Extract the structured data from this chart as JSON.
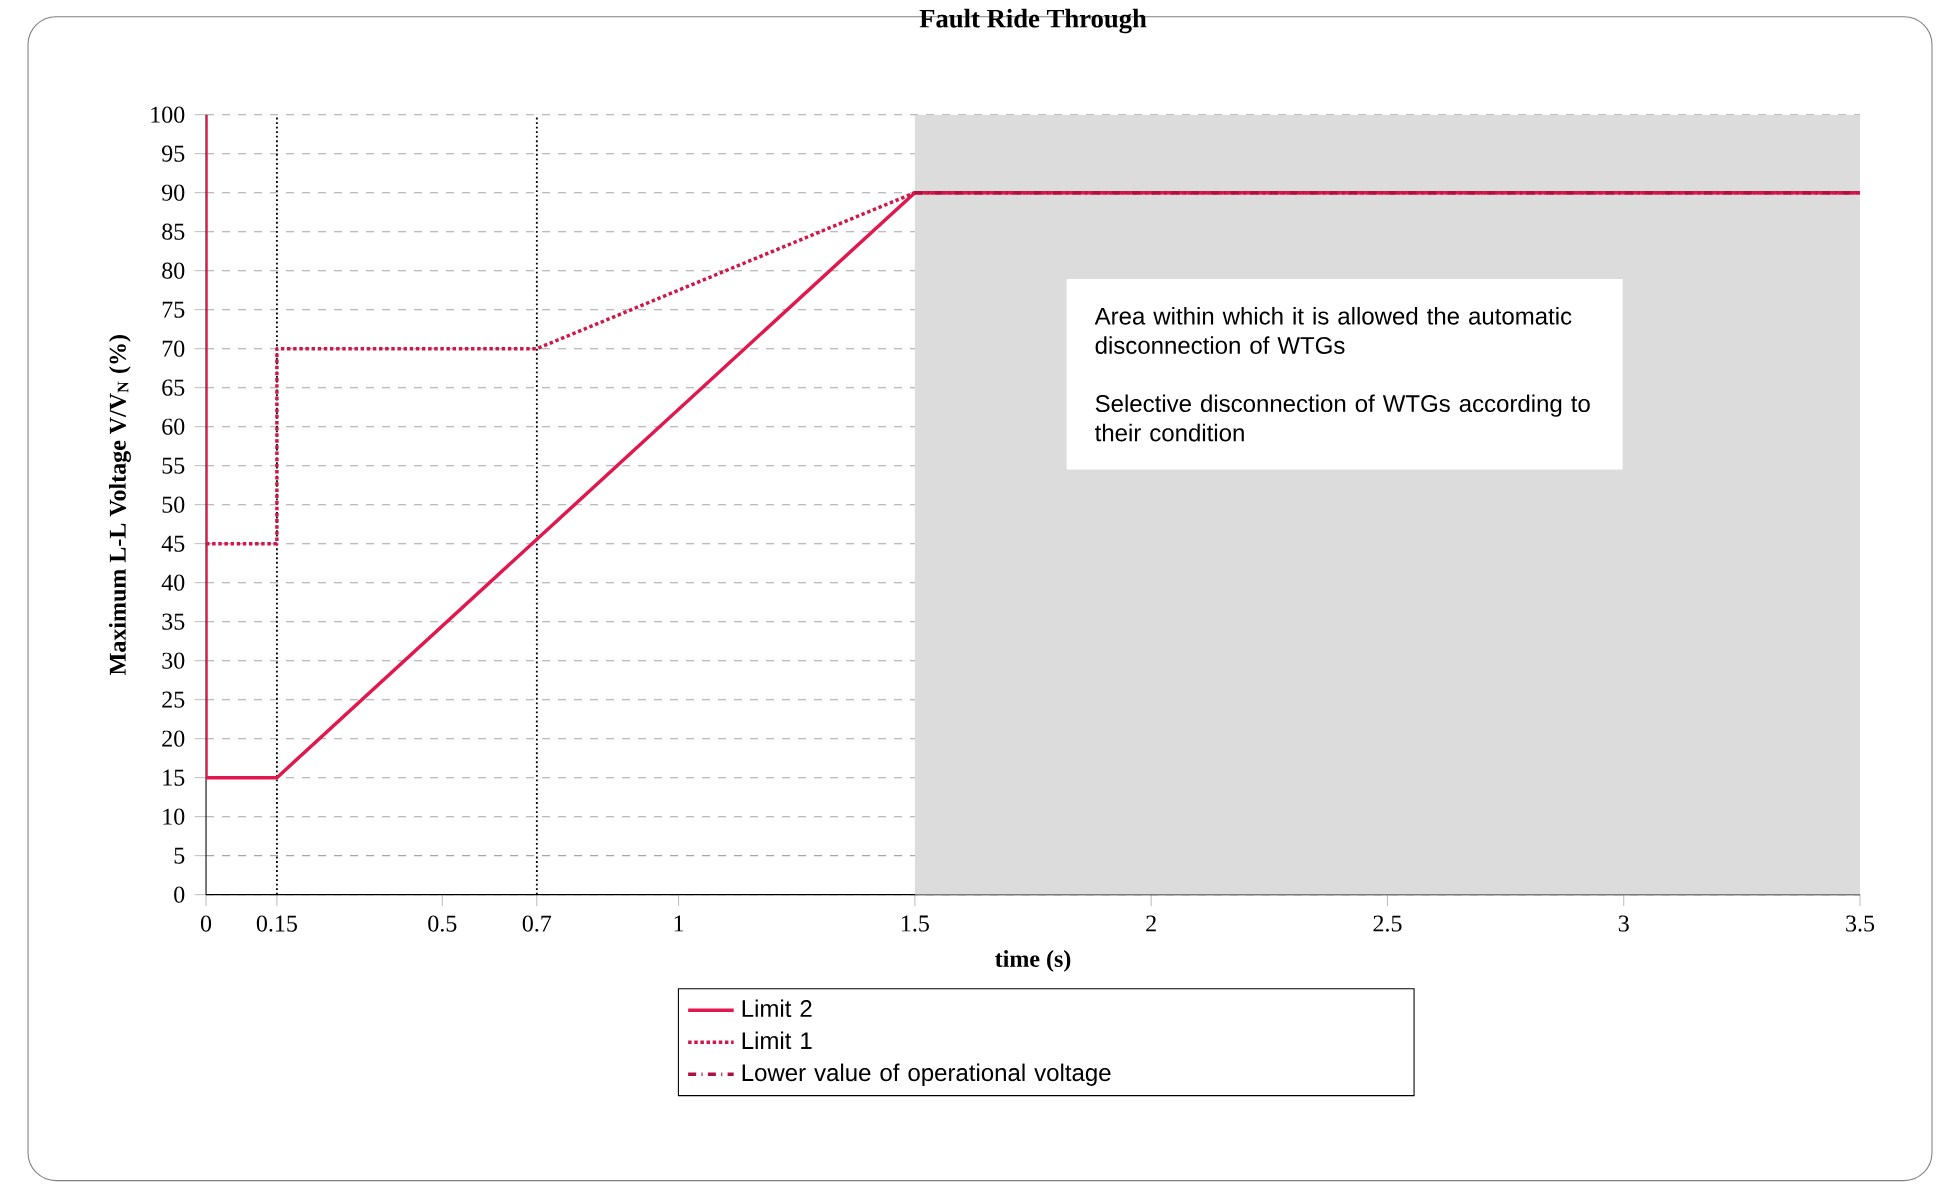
{
  "chart_data": {
    "type": "line",
    "title": "Fault Ride Through",
    "xlabel": "time (s)",
    "ylabel": "Maximum L-L Voltage V/V$_{N}$ (%)",
    "xlim": [
      0,
      3.5
    ],
    "ylim": [
      0,
      100
    ],
    "xticks": [
      0,
      0.15,
      0.5,
      0.7,
      1,
      1.5,
      2,
      2.5,
      3,
      3.5
    ],
    "yticks": [
      0,
      5,
      10,
      15,
      20,
      25,
      30,
      35,
      40,
      45,
      50,
      55,
      60,
      65,
      70,
      75,
      80,
      85,
      90,
      95,
      100
    ],
    "grid": "y",
    "legend": "bottom",
    "marker": "none",
    "series": [
      {
        "name": "Limit 2",
        "color": "#e0184e",
        "line_style": "solid",
        "x": [
          0,
          0,
          0.15,
          1.5,
          3.5
        ],
        "values": [
          100,
          15,
          15,
          90,
          90
        ]
      },
      {
        "name": "Limit 1",
        "color": "#d01848",
        "line_style": "dotted",
        "x": [
          0,
          0.15,
          0.15,
          0.7,
          1.5,
          3.5
        ],
        "values": [
          45,
          45,
          70,
          70,
          90,
          90
        ]
      },
      {
        "name": "Lower value of operational voltage",
        "color": "#b01040",
        "line_style": "dashdotted",
        "x": [
          1.5,
          3.5
        ],
        "values": [
          90,
          90
        ]
      }
    ],
    "ref_lines": [
      {
        "axis": "x",
        "value": 0.15,
        "color": "#000000",
        "line_style": "dotted"
      },
      {
        "axis": "x",
        "value": 0.7,
        "color": "#000000",
        "line_style": "dotted"
      }
    ],
    "bands": [
      {
        "axis": "x",
        "from": 1.5,
        "to": 3.5,
        "color": "#dcdcdc",
        "label": "Area within which it is allowed the automatic disconnection of WTGs"
      }
    ],
    "annotations": [
      "Selective disconnection of WTGs according to their condition"
    ]
  }
}
